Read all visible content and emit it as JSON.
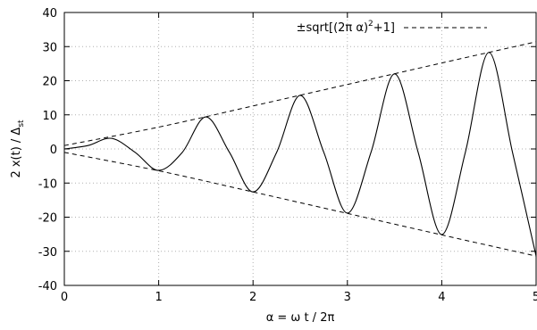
{
  "chart_data": {
    "type": "line",
    "xlabel": "α = ω t / 2π",
    "ylabel": "2 x(t) / Δst",
    "xlim": [
      0,
      5
    ],
    "ylim": [
      -40,
      40
    ],
    "x_ticks": [
      "0",
      "1",
      "2",
      "3",
      "4",
      "5"
    ],
    "y_ticks": [
      "40",
      "30",
      "20",
      "10",
      "0",
      "-10",
      "-20",
      "-30",
      "-40"
    ],
    "grid": true,
    "legend_position": "top-right",
    "series": [
      {
        "style": "solid",
        "x": [
          0,
          0.25,
          0.5,
          0.75,
          1,
          1.25,
          1.5,
          1.75,
          2,
          2.25,
          2.5,
          2.75,
          3,
          3.25,
          3.5,
          3.75,
          4,
          4.25,
          4.5,
          4.75,
          5
        ],
        "y": [
          0,
          1.0,
          3.1,
          -1.0,
          -6.3,
          -1.0,
          9.4,
          -1.0,
          -12.6,
          -1.0,
          15.7,
          -1.0,
          -18.8,
          -1.0,
          22.0,
          -1.0,
          -25.1,
          -1.0,
          28.3,
          -1.0,
          -31.4
        ]
      },
      {
        "name": "±sqrt[(2π α)²+1]",
        "style": "dashed",
        "x": [
          0,
          1,
          2,
          3,
          4,
          5
        ],
        "y_upper": [
          1.0,
          6.4,
          12.6,
          18.9,
          25.2,
          31.4
        ],
        "y_lower": [
          -1.0,
          -6.4,
          -12.6,
          -18.9,
          -25.2,
          -31.4
        ]
      }
    ]
  },
  "legend": {
    "main": "±sqrt[(2π α)",
    "sup": "2",
    "tail": "+1]"
  },
  "axes": {
    "xlabel": "α = ω t / 2π",
    "ylabel_main": "2 x(t) / Δ",
    "ylabel_sub": "st"
  }
}
